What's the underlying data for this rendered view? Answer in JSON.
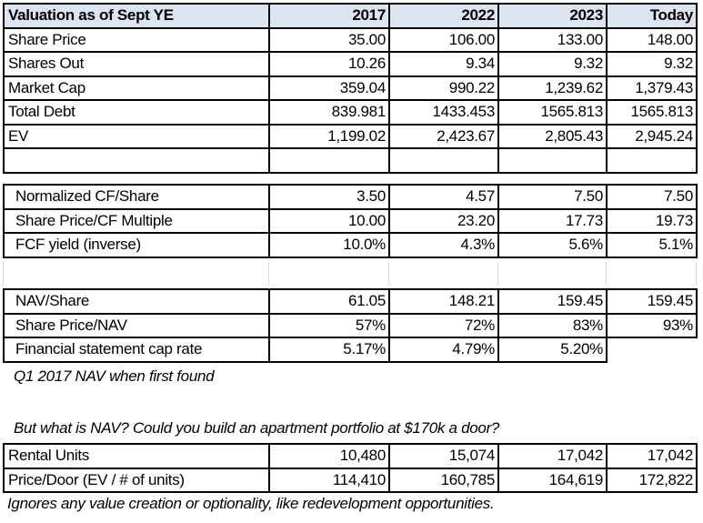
{
  "valuation_table": {
    "header": [
      "Valuation as of Sept YE",
      "2017",
      "2022",
      "2023",
      "Today"
    ],
    "rows": [
      [
        "Share Price",
        "35.00",
        "106.00",
        "133.00",
        "148.00"
      ],
      [
        "Shares Out",
        "10.26",
        "9.34",
        "9.32",
        "9.32"
      ],
      [
        "Market Cap",
        "359.04",
        "990.22",
        "1,239.62",
        "1,379.43"
      ],
      [
        "Total Debt",
        "839.981",
        "1433.453",
        "1565.813",
        "1565.813"
      ],
      [
        "EV",
        "1,199.02",
        "2,423.67",
        "2,805.43",
        "2,945.24"
      ],
      [
        "",
        "",
        "",
        "",
        ""
      ]
    ]
  },
  "cashflow_table": {
    "rows": [
      [
        "Normalized CF/Share",
        "3.50",
        "4.57",
        "7.50",
        "7.50"
      ],
      [
        "Share Price/CF Multiple",
        "10.00",
        "23.20",
        "17.73",
        "19.73"
      ],
      [
        "FCF yield (inverse)",
        "10.0%",
        "4.3%",
        "5.6%",
        "5.1%"
      ]
    ]
  },
  "nav_table": {
    "rows": [
      [
        "NAV/Share",
        "61.05",
        "148.21",
        "159.45",
        "159.45"
      ],
      [
        "Share Price/NAV",
        "57%",
        "72%",
        "83%",
        "93%"
      ],
      [
        "Financial statement cap rate",
        "5.17%",
        "4.79%",
        "5.20%",
        ""
      ]
    ]
  },
  "nav_note": "Q1 2017 NAV when first found",
  "question_note": "But what is NAV? Could you build an apartment portfolio at $170k a door?",
  "units_table": {
    "rows": [
      [
        "Rental Units",
        "10,480",
        "15,074",
        "17,042",
        "17,042"
      ],
      [
        "Price/Door (EV / # of  units)",
        "114,410",
        "160,785",
        "164,619",
        "172,822"
      ]
    ]
  },
  "footer_note": "Ignores any value creation or optionality, like redevelopment opportunities.",
  "colors": {
    "header_bg": "#dce3f1",
    "border": "#000000",
    "gap_border": "#d9d9d9"
  }
}
